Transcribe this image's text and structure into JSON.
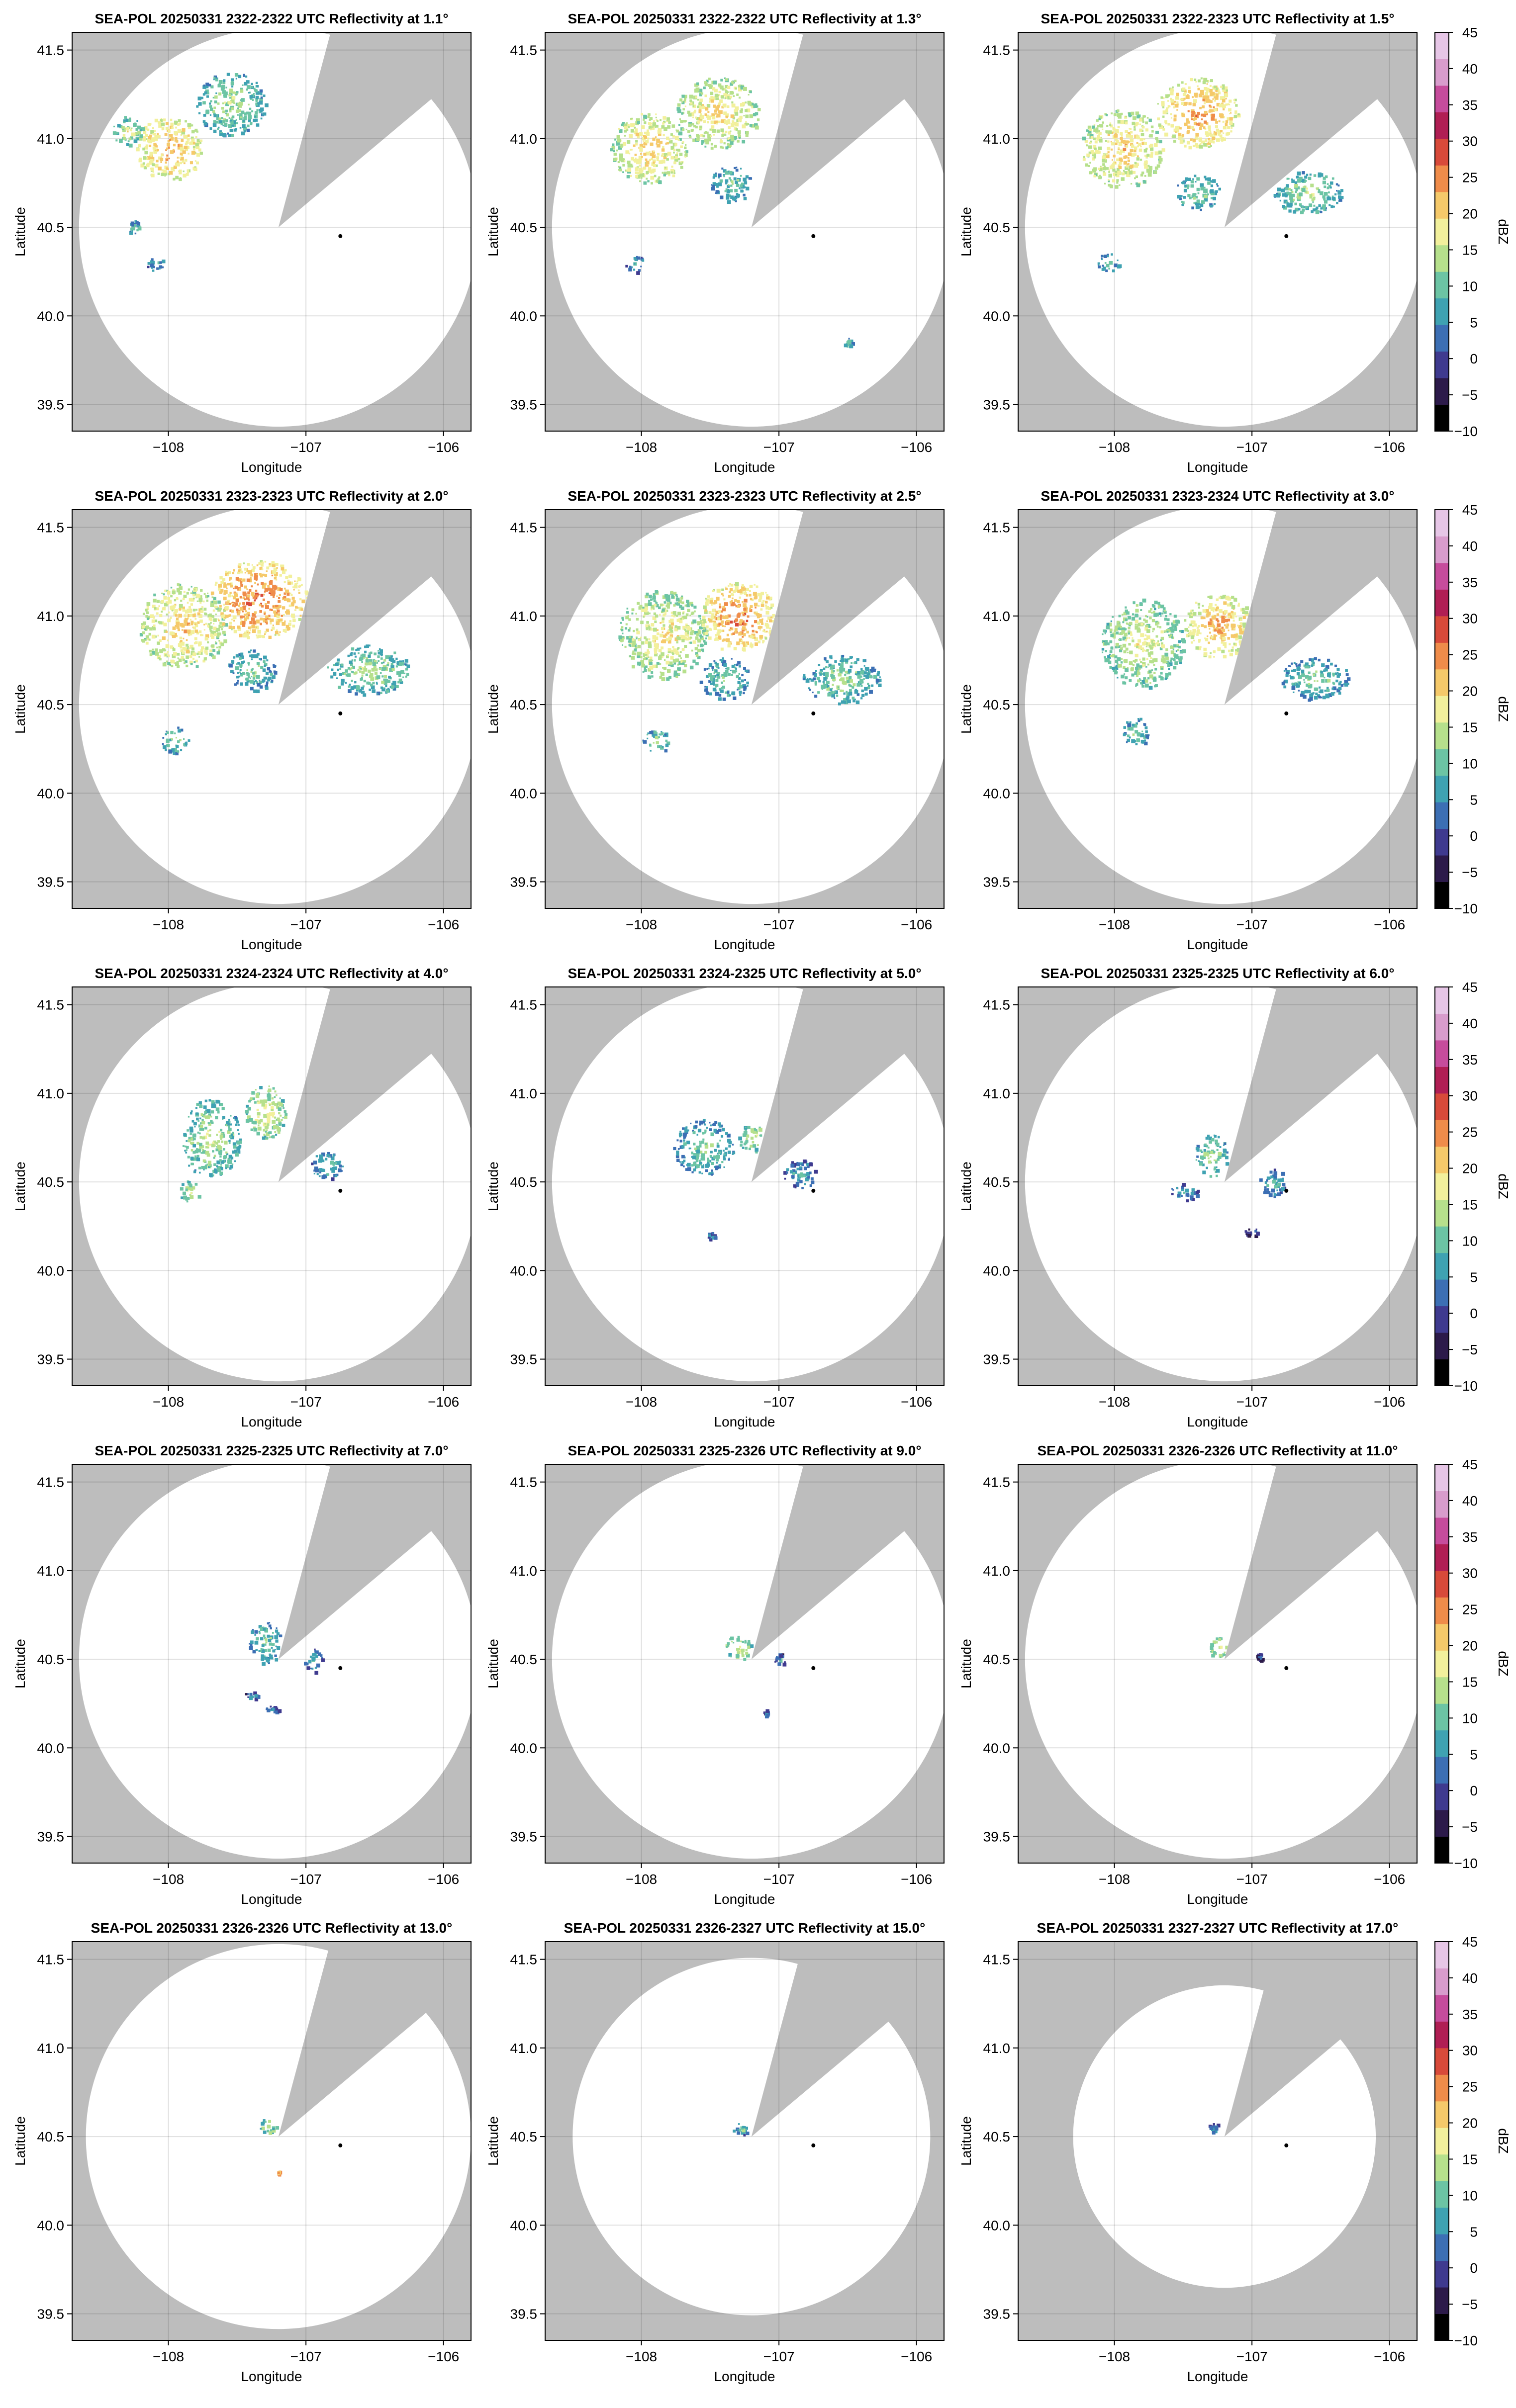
{
  "chart_data": {
    "type": "heatmap",
    "variable": "Reflectivity",
    "xlabel": "Longitude",
    "ylabel": "Latitude",
    "xlim": [
      -108.7,
      -105.8
    ],
    "ylim": [
      39.35,
      41.6
    ],
    "xticks": [
      -108,
      -107,
      -106
    ],
    "xtick_labels": [
      "−108",
      "−107",
      "−106"
    ],
    "yticks": [
      39.5,
      40.0,
      40.5,
      41.0,
      41.5
    ],
    "ytick_labels": [
      "39.5",
      "40.0",
      "40.5",
      "41.0",
      "41.5"
    ],
    "grid": true,
    "radar_center": {
      "lon": -107.2,
      "lat": 40.5
    },
    "site_marker": {
      "lon": -106.75,
      "lat": 40.45
    },
    "blocked_sector_deg": [
      15,
      50
    ],
    "outside_coverage_color": "#bdbdbd",
    "colorbar": {
      "label": "dBZ",
      "min": -10,
      "max": 45,
      "ticks": [
        45,
        40,
        35,
        30,
        25,
        20,
        15,
        10,
        5,
        0,
        -5,
        -10
      ],
      "tick_labels": [
        "45",
        "40",
        "35",
        "30",
        "25",
        "20",
        "15",
        "10",
        "5",
        "0",
        "−5",
        "−10"
      ],
      "colors": [
        "#000000",
        "#2c1a4a",
        "#3f3a8f",
        "#3c6fb4",
        "#3fa2b2",
        "#6cc4a4",
        "#b6e08c",
        "#f2f09c",
        "#f5c96a",
        "#ef8c4a",
        "#d84a3a",
        "#b01e54",
        "#c64c9c",
        "#d89ccc",
        "#e6c6e6"
      ]
    },
    "panels": [
      {
        "title": "SEA-POL 20250331 2322-2322 UTC Reflectivity at 1.1°",
        "elevation_deg": 1.1,
        "coverage_radius_deg": 1.45,
        "echoes": [
          {
            "lon": -108.0,
            "lat": 40.95,
            "rx": 0.24,
            "ry": 0.18,
            "dbz": 24
          },
          {
            "lon": -107.55,
            "lat": 41.2,
            "rx": 0.25,
            "ry": 0.18,
            "dbz": 15
          },
          {
            "lon": -108.3,
            "lat": 41.05,
            "rx": 0.12,
            "ry": 0.08,
            "dbz": 17
          },
          {
            "lon": -108.1,
            "lat": 40.3,
            "rx": 0.06,
            "ry": 0.05,
            "dbz": 11
          },
          {
            "lon": -108.25,
            "lat": 40.5,
            "rx": 0.05,
            "ry": 0.04,
            "dbz": 12
          }
        ]
      },
      {
        "title": "SEA-POL 20250331 2322-2322 UTC Reflectivity at 1.3°",
        "elevation_deg": 1.3,
        "coverage_radius_deg": 1.45,
        "echoes": [
          {
            "lon": -107.95,
            "lat": 40.95,
            "rx": 0.28,
            "ry": 0.2,
            "dbz": 22
          },
          {
            "lon": -107.45,
            "lat": 41.15,
            "rx": 0.3,
            "ry": 0.2,
            "dbz": 21
          },
          {
            "lon": -107.35,
            "lat": 40.75,
            "rx": 0.15,
            "ry": 0.1,
            "dbz": 13
          },
          {
            "lon": -108.05,
            "lat": 40.3,
            "rx": 0.07,
            "ry": 0.05,
            "dbz": 11
          },
          {
            "lon": -106.5,
            "lat": 39.85,
            "rx": 0.03,
            "ry": 0.03,
            "dbz": 14
          }
        ]
      },
      {
        "title": "SEA-POL 20250331 2322-2323 UTC Reflectivity at 1.5°",
        "elevation_deg": 1.5,
        "coverage_radius_deg": 1.45,
        "echoes": [
          {
            "lon": -107.95,
            "lat": 40.95,
            "rx": 0.3,
            "ry": 0.22,
            "dbz": 22
          },
          {
            "lon": -107.4,
            "lat": 41.15,
            "rx": 0.3,
            "ry": 0.2,
            "dbz": 25
          },
          {
            "lon": -106.6,
            "lat": 40.7,
            "rx": 0.25,
            "ry": 0.12,
            "dbz": 15
          },
          {
            "lon": -107.4,
            "lat": 40.7,
            "rx": 0.16,
            "ry": 0.1,
            "dbz": 14
          },
          {
            "lon": -108.05,
            "lat": 40.3,
            "rx": 0.08,
            "ry": 0.06,
            "dbz": 12
          }
        ]
      },
      {
        "title": "SEA-POL 20250331 2323-2323 UTC Reflectivity at 2.0°",
        "elevation_deg": 2.0,
        "coverage_radius_deg": 1.45,
        "echoes": [
          {
            "lon": -107.9,
            "lat": 40.95,
            "rx": 0.32,
            "ry": 0.24,
            "dbz": 22
          },
          {
            "lon": -107.35,
            "lat": 41.1,
            "rx": 0.35,
            "ry": 0.22,
            "dbz": 27
          },
          {
            "lon": -106.55,
            "lat": 40.7,
            "rx": 0.3,
            "ry": 0.14,
            "dbz": 15
          },
          {
            "lon": -107.4,
            "lat": 40.7,
            "rx": 0.18,
            "ry": 0.12,
            "dbz": 13
          },
          {
            "lon": -107.95,
            "lat": 40.3,
            "rx": 0.1,
            "ry": 0.08,
            "dbz": 14
          }
        ]
      },
      {
        "title": "SEA-POL 20250331 2323-2323 UTC Reflectivity at 2.5°",
        "elevation_deg": 2.5,
        "coverage_radius_deg": 1.45,
        "echoes": [
          {
            "lon": -107.85,
            "lat": 40.9,
            "rx": 0.32,
            "ry": 0.25,
            "dbz": 20
          },
          {
            "lon": -107.3,
            "lat": 41.0,
            "rx": 0.28,
            "ry": 0.2,
            "dbz": 26
          },
          {
            "lon": -106.55,
            "lat": 40.65,
            "rx": 0.28,
            "ry": 0.14,
            "dbz": 14
          },
          {
            "lon": -107.4,
            "lat": 40.65,
            "rx": 0.18,
            "ry": 0.12,
            "dbz": 13
          },
          {
            "lon": -107.9,
            "lat": 40.3,
            "rx": 0.1,
            "ry": 0.07,
            "dbz": 14
          }
        ]
      },
      {
        "title": "SEA-POL 20250331 2323-2324 UTC Reflectivity at 3.0°",
        "elevation_deg": 3.0,
        "coverage_radius_deg": 1.45,
        "echoes": [
          {
            "lon": -107.8,
            "lat": 40.85,
            "rx": 0.3,
            "ry": 0.25,
            "dbz": 18
          },
          {
            "lon": -107.25,
            "lat": 40.95,
            "rx": 0.25,
            "ry": 0.18,
            "dbz": 24
          },
          {
            "lon": -106.55,
            "lat": 40.65,
            "rx": 0.25,
            "ry": 0.12,
            "dbz": 13
          },
          {
            "lon": -107.85,
            "lat": 40.35,
            "rx": 0.1,
            "ry": 0.08,
            "dbz": 13
          }
        ]
      },
      {
        "title": "SEA-POL 20250331 2324-2324 UTC Reflectivity at 4.0°",
        "elevation_deg": 4.0,
        "coverage_radius_deg": 1.45,
        "echoes": [
          {
            "lon": -107.7,
            "lat": 40.75,
            "rx": 0.22,
            "ry": 0.22,
            "dbz": 16
          },
          {
            "lon": -107.3,
            "lat": 40.9,
            "rx": 0.15,
            "ry": 0.15,
            "dbz": 19
          },
          {
            "lon": -106.85,
            "lat": 40.6,
            "rx": 0.12,
            "ry": 0.08,
            "dbz": 12
          },
          {
            "lon": -107.85,
            "lat": 40.45,
            "rx": 0.08,
            "ry": 0.06,
            "dbz": 17
          }
        ]
      },
      {
        "title": "SEA-POL 20250331 2324-2325 UTC Reflectivity at 5.0°",
        "elevation_deg": 5.0,
        "coverage_radius_deg": 1.45,
        "echoes": [
          {
            "lon": -107.55,
            "lat": 40.7,
            "rx": 0.22,
            "ry": 0.16,
            "dbz": 13
          },
          {
            "lon": -107.2,
            "lat": 40.75,
            "rx": 0.1,
            "ry": 0.08,
            "dbz": 17
          },
          {
            "lon": -106.85,
            "lat": 40.55,
            "rx": 0.12,
            "ry": 0.08,
            "dbz": 10
          },
          {
            "lon": -107.5,
            "lat": 40.2,
            "rx": 0.03,
            "ry": 0.02,
            "dbz": 8
          }
        ]
      },
      {
        "title": "SEA-POL 20250331 2325-2325 UTC Reflectivity at 6.0°",
        "elevation_deg": 6.0,
        "coverage_radius_deg": 1.45,
        "echoes": [
          {
            "lon": -107.3,
            "lat": 40.65,
            "rx": 0.12,
            "ry": 0.12,
            "dbz": 15
          },
          {
            "lon": -106.85,
            "lat": 40.5,
            "rx": 0.1,
            "ry": 0.08,
            "dbz": 10
          },
          {
            "lon": -107.5,
            "lat": 40.45,
            "rx": 0.1,
            "ry": 0.05,
            "dbz": 9
          },
          {
            "lon": -107.0,
            "lat": 40.22,
            "rx": 0.06,
            "ry": 0.02,
            "dbz": 6
          }
        ]
      },
      {
        "title": "SEA-POL 20250331 2325-2325 UTC Reflectivity at 7.0°",
        "elevation_deg": 7.0,
        "coverage_radius_deg": 1.45,
        "echoes": [
          {
            "lon": -107.3,
            "lat": 40.6,
            "rx": 0.12,
            "ry": 0.12,
            "dbz": 13
          },
          {
            "lon": -106.95,
            "lat": 40.5,
            "rx": 0.07,
            "ry": 0.07,
            "dbz": 10
          },
          {
            "lon": -107.4,
            "lat": 40.3,
            "rx": 0.05,
            "ry": 0.02,
            "dbz": 8
          },
          {
            "lon": -107.25,
            "lat": 40.22,
            "rx": 0.05,
            "ry": 0.02,
            "dbz": 7
          }
        ]
      },
      {
        "title": "SEA-POL 20250331 2325-2326 UTC Reflectivity at 9.0°",
        "elevation_deg": 9.0,
        "coverage_radius_deg": 1.45,
        "echoes": [
          {
            "lon": -107.3,
            "lat": 40.57,
            "rx": 0.1,
            "ry": 0.07,
            "dbz": 18
          },
          {
            "lon": -107.0,
            "lat": 40.5,
            "rx": 0.04,
            "ry": 0.04,
            "dbz": 8
          },
          {
            "lon": -107.1,
            "lat": 40.2,
            "rx": 0.02,
            "ry": 0.02,
            "dbz": 7
          }
        ]
      },
      {
        "title": "SEA-POL 20250331 2326-2326 UTC Reflectivity at 11.0°",
        "elevation_deg": 11.0,
        "coverage_radius_deg": 1.45,
        "echoes": [
          {
            "lon": -107.25,
            "lat": 40.57,
            "rx": 0.07,
            "ry": 0.06,
            "dbz": 19
          },
          {
            "lon": -106.95,
            "lat": 40.52,
            "rx": 0.02,
            "ry": 0.02,
            "dbz": 6
          }
        ]
      },
      {
        "title": "SEA-POL 20250331 2326-2326 UTC Reflectivity at 13.0°",
        "elevation_deg": 13.0,
        "coverage_radius_deg": 1.4,
        "echoes": [
          {
            "lon": -107.28,
            "lat": 40.56,
            "rx": 0.06,
            "ry": 0.05,
            "dbz": 16
          },
          {
            "lon": -107.2,
            "lat": 40.3,
            "rx": 0.01,
            "ry": 0.01,
            "dbz": 30
          }
        ]
      },
      {
        "title": "SEA-POL 20250331 2326-2327 UTC Reflectivity at 15.0°",
        "elevation_deg": 15.0,
        "coverage_radius_deg": 1.3,
        "echoes": [
          {
            "lon": -107.28,
            "lat": 40.55,
            "rx": 0.06,
            "ry": 0.04,
            "dbz": 12
          }
        ]
      },
      {
        "title": "SEA-POL 20250331 2327-2327 UTC Reflectivity at 17.0°",
        "elevation_deg": 17.0,
        "coverage_radius_deg": 1.1,
        "echoes": [
          {
            "lon": -107.28,
            "lat": 40.55,
            "rx": 0.05,
            "ry": 0.03,
            "dbz": 8
          }
        ]
      }
    ]
  }
}
